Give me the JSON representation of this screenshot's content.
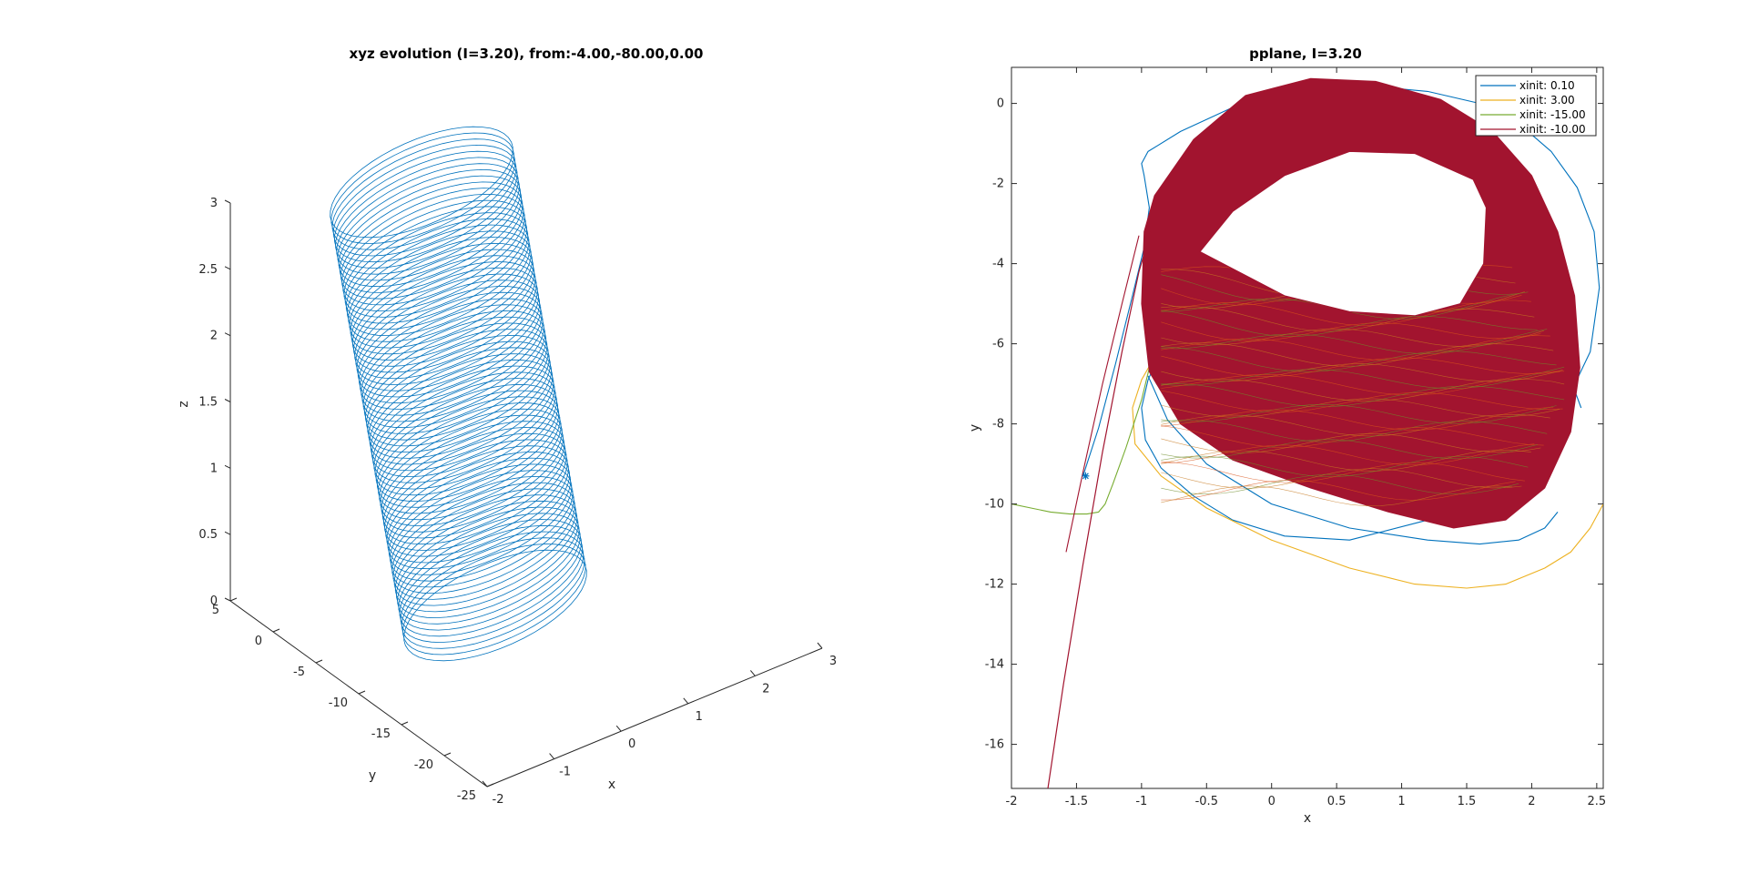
{
  "chart_data": [
    {
      "type": "line3d",
      "title": "xyz evolution (I=3.20), from:-4.00,-80.00,0.00",
      "xlabel": "x",
      "ylabel": "y",
      "zlabel": "z",
      "xlim": [
        -2,
        3
      ],
      "ylim": [
        -25,
        5
      ],
      "zlim": [
        0,
        3
      ],
      "x_ticks": [
        "-2",
        "-1",
        "0",
        "1",
        "2",
        "3"
      ],
      "y_ticks": [
        "5",
        "0",
        "-5",
        "-10",
        "-15",
        "-20",
        "-25"
      ],
      "z_ticks": [
        "0",
        "0.5",
        "1",
        "1.5",
        "2",
        "2.5",
        "3"
      ],
      "grid": false,
      "series": [
        {
          "color": "#0072BD",
          "shape": "stack of closed loops (tube)",
          "z_range": [
            0,
            3
          ]
        }
      ]
    },
    {
      "type": "line",
      "title": "pplane, I=3.20",
      "xlabel": "x",
      "ylabel": "y",
      "xlim": [
        -2,
        2.55
      ],
      "ylim": [
        -17.1,
        0.9
      ],
      "x_ticks": [
        "-2",
        "-1.5",
        "-1",
        "-0.5",
        "0",
        "0.5",
        "1",
        "1.5",
        "2",
        "2.5"
      ],
      "y_ticks": [
        "0",
        "-2",
        "-4",
        "-6",
        "-8",
        "-10",
        "-12",
        "-14",
        "-16"
      ],
      "grid": false,
      "legend_position": "top-right",
      "series": [
        {
          "name": "xinit: 0.10",
          "color": "#0072BD",
          "x": [
            -1.45,
            -1.33,
            -1.2,
            -1.07,
            -0.98,
            -0.94,
            -0.98,
            -1.0,
            -0.95,
            -0.7,
            -0.3,
            0.2,
            0.7,
            1.2,
            1.6,
            1.9,
            2.15,
            2.35,
            2.48,
            2.52,
            2.45,
            2.2,
            1.8,
            1.2,
            0.6,
            0.1,
            -0.3,
            -0.6,
            -0.85,
            -0.97,
            -1.0,
            -0.95,
            -0.85,
            -0.6,
            -0.2,
            0.4,
            1.0,
            1.5,
            1.9,
            2.15,
            2.3,
            2.38
          ],
          "y": [
            -9.3,
            -8.1,
            -6.5,
            -4.8,
            -3.6,
            -2.6,
            -1.8,
            -1.5,
            -1.2,
            -0.7,
            -0.1,
            0.35,
            0.45,
            0.3,
            0.0,
            -0.5,
            -1.2,
            -2.1,
            -3.2,
            -4.6,
            -6.2,
            -7.9,
            -9.3,
            -10.4,
            -10.9,
            -10.8,
            -10.4,
            -9.8,
            -9.1,
            -8.4,
            -7.6,
            -6.9,
            -6.2,
            -5.6,
            -5.2,
            -5.0,
            -5.0,
            -5.2,
            -5.6,
            -6.2,
            -6.9,
            -7.6
          ],
          "outer_loop_x": [
            -0.95,
            -0.8,
            -0.5,
            0.0,
            0.6,
            1.2,
            1.6,
            1.9,
            2.1,
            2.2
          ],
          "outer_loop_y": [
            -6.8,
            -7.9,
            -9.0,
            -10.0,
            -10.6,
            -10.9,
            -11.0,
            -10.9,
            -10.6,
            -10.2
          ]
        },
        {
          "name": "xinit: 3.00",
          "color": "#EDB120",
          "x": [
            2.55,
            2.45,
            2.3,
            2.1,
            1.8,
            1.5,
            1.1,
            0.6,
            0.0,
            -0.5,
            -0.85,
            -1.05,
            -1.07,
            -1.0,
            -0.93
          ],
          "y": [
            -10.0,
            -10.6,
            -11.2,
            -11.6,
            -12.0,
            -12.1,
            -12.0,
            -11.6,
            -10.9,
            -10.1,
            -9.3,
            -8.5,
            -7.6,
            -6.9,
            -6.5
          ]
        },
        {
          "name": "xinit: -15.00",
          "color": "#77AC30",
          "x": [
            -2.0,
            -1.85,
            -1.7,
            -1.55,
            -1.42,
            -1.33,
            -1.28,
            -1.22,
            -1.12,
            -1.0,
            -0.94
          ],
          "y": [
            -10.0,
            -10.1,
            -10.2,
            -10.25,
            -10.25,
            -10.2,
            -10.0,
            -9.5,
            -8.6,
            -7.4,
            -6.6
          ]
        },
        {
          "name": "xinit: -10.00",
          "color": "#A2142F",
          "x": [
            -1.72,
            -1.6,
            -1.45,
            -1.3,
            -1.15,
            -1.02,
            -0.93
          ],
          "y": [
            -17.1,
            -14.5,
            -11.5,
            -8.7,
            -6.2,
            -4.2,
            -3.2
          ]
        }
      ],
      "markers": [
        {
          "x": -1.43,
          "y": -9.3,
          "symbol": "*",
          "color": "#0072BD"
        }
      ]
    }
  ]
}
